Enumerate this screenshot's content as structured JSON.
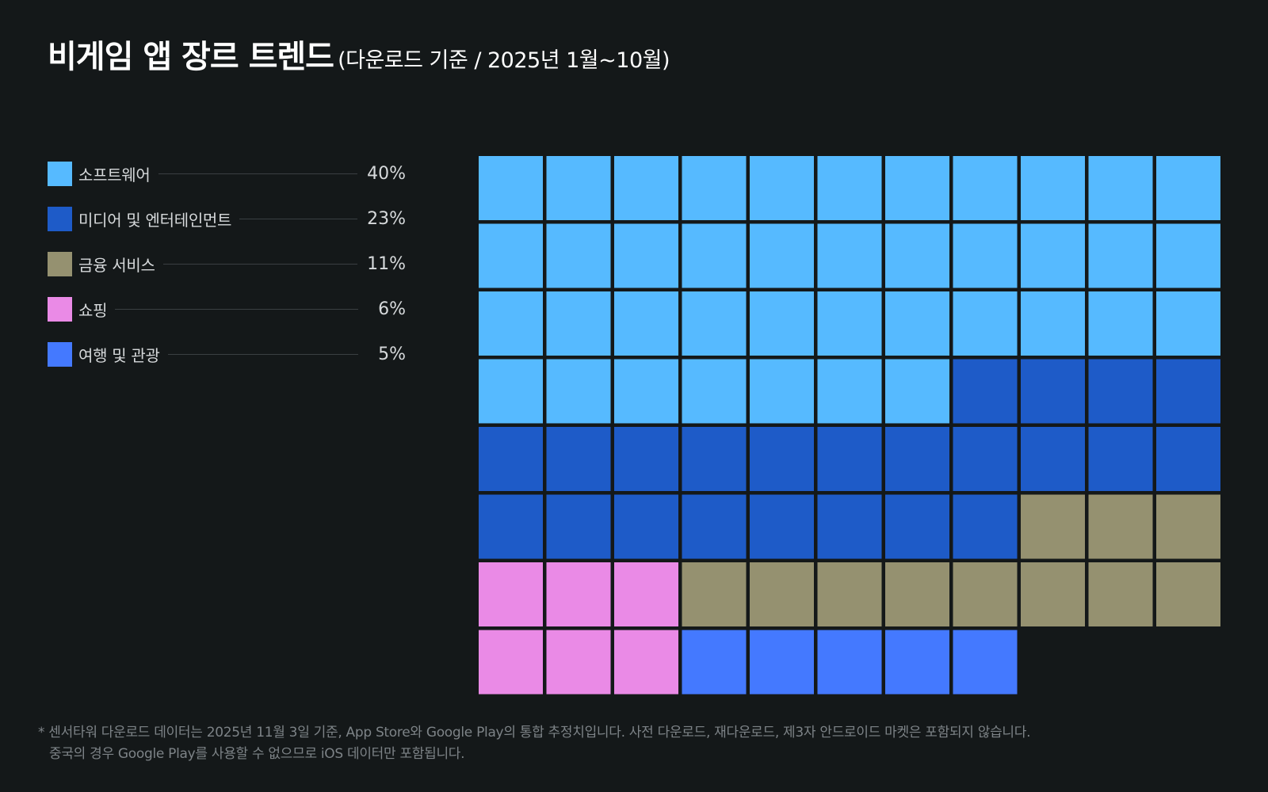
{
  "title": {
    "main": "비게임 앱 장르 트렌드",
    "sub": "(다운로드 기준 / 2025년 1월~10월)"
  },
  "chart_data": {
    "type": "waffle",
    "grid": {
      "columns": 11,
      "rows": 8
    },
    "series": [
      {
        "name": "소프트웨어",
        "value_label": "40%",
        "value": 40,
        "squares": 40,
        "color": "#56baff"
      },
      {
        "name": "미디어 및 엔터테인먼트",
        "value_label": "23%",
        "value": 23,
        "squares": 23,
        "color": "#1e5bc8"
      },
      {
        "name": "금융 서비스",
        "value_label": "11%",
        "value": 11,
        "squares": 11,
        "color": "#959170"
      },
      {
        "name": "쇼핑",
        "value_label": "6%",
        "value": 6,
        "squares": 6,
        "color": "#ea8ae6"
      },
      {
        "name": "여행 및 관광",
        "value_label": "5%",
        "value": 5,
        "squares": 5,
        "color": "#4479ff"
      }
    ],
    "legend_position": "left"
  },
  "footnote": {
    "line1": "* 센서타워 다운로드 데이터는 2025년 11월 3일 기준, App Store와 Google Play의 통합 추정치입니다. 사전 다운로드, 재다운로드, 제3자 안드로이드 마켓은 포함되지 않습니다.",
    "line2": "중국의 경우 Google Play를 사용할 수 없으므로 iOS 데이터만 포함됩니다."
  }
}
